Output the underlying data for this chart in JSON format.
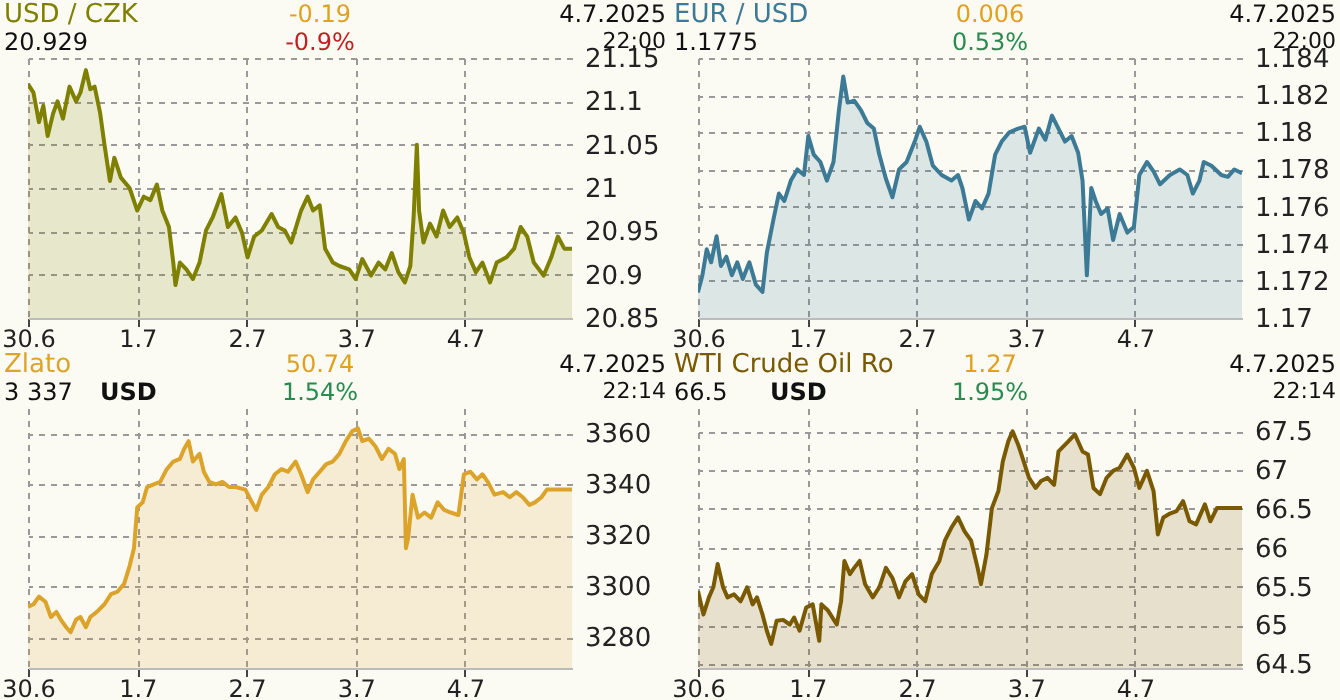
{
  "chart_data": [
    {
      "type": "area",
      "title": "USD / CZK",
      "annotations": [
        "20.929",
        "-0.19",
        "-0.9%",
        "4.7.2025",
        "22:00"
      ],
      "grid": true,
      "x": [
        "2025-06-30T00:00",
        "2025-06-30T01:12",
        "2025-06-30T02:24",
        "2025-06-30T03:22",
        "2025-06-30T04:19",
        "2025-06-30T05:31",
        "2025-06-30T06:29",
        "2025-06-30T07:41",
        "2025-06-30T09:07",
        "2025-06-30T10:34",
        "2025-06-30T11:31",
        "2025-06-30T12:43",
        "2025-06-30T13:41",
        "2025-06-30T14:38",
        "2025-06-30T15:50",
        "2025-06-30T16:48",
        "2025-06-30T18:00",
        "2025-06-30T18:58",
        "2025-06-30T20:24",
        "2025-06-30T22:19",
        "2025-07-01T00:00",
        "2025-07-01T01:26",
        "2025-07-01T02:53",
        "2025-07-01T04:19",
        "2025-07-01T05:31",
        "2025-07-01T06:58",
        "2025-07-01T07:55",
        "2025-07-01T08:24",
        "2025-07-01T09:22",
        "2025-07-01T10:48",
        "2025-07-01T12:14",
        "2025-07-01T13:41",
        "2025-07-01T15:07",
        "2025-07-01T16:34",
        "2025-07-01T18:29",
        "2025-07-01T19:55",
        "2025-07-01T21:36",
        "2025-07-01T23:02",
        "2025-07-02T00:14",
        "2025-07-02T01:41",
        "2025-07-02T03:22",
        "2025-07-02T05:31",
        "2025-07-02T06:58",
        "2025-07-02T08:24",
        "2025-07-02T09:50",
        "2025-07-02T12:00",
        "2025-07-02T13:26",
        "2025-07-02T14:38",
        "2025-07-02T16:05",
        "2025-07-02T17:17",
        "2025-07-02T18:58",
        "2025-07-02T20:24",
        "2025-07-02T22:34",
        "2025-07-03T00:00",
        "2025-07-03T01:26",
        "2025-07-03T03:22",
        "2025-07-03T05:02",
        "2025-07-03T06:29",
        "2025-07-03T07:55",
        "2025-07-03T09:22",
        "2025-07-03T10:48",
        "2025-07-03T12:00",
        "2025-07-03T12:43",
        "2025-07-03T13:26",
        "2025-07-03T13:55",
        "2025-07-03T14:53",
        "2025-07-03T16:19",
        "2025-07-03T17:46",
        "2025-07-03T19:12",
        "2025-07-03T20:38",
        "2025-07-03T22:19",
        "2025-07-03T23:46",
        "2025-07-04T00:58",
        "2025-07-04T02:24",
        "2025-07-04T03:50",
        "2025-07-04T05:31",
        "2025-07-04T06:58",
        "2025-07-04T09:07",
        "2025-07-04T10:48",
        "2025-07-04T12:14",
        "2025-07-04T13:41",
        "2025-07-04T15:07",
        "2025-07-04T17:17",
        "2025-07-04T18:58",
        "2025-07-04T20:24",
        "2025-07-04T21:50",
        "2025-07-04T23:31"
      ],
      "series": [
        {
          "color": "#808000",
          "values": [
            21.12,
            21.11,
            21.076,
            21.095,
            21.06,
            21.086,
            21.1,
            21.08,
            21.117,
            21.1,
            21.11,
            21.136,
            21.114,
            21.117,
            21.087,
            21.05,
            21.008,
            21.035,
            21.012,
            21.0,
            20.974,
            20.99,
            20.986,
            21.004,
            20.974,
            20.955,
            20.914,
            20.888,
            20.914,
            20.906,
            20.895,
            20.914,
            20.951,
            20.966,
            20.993,
            20.955,
            20.966,
            20.948,
            20.92,
            20.944,
            20.951,
            20.97,
            20.955,
            20.951,
            20.937,
            20.974,
            20.99,
            20.974,
            20.98,
            20.93,
            20.914,
            20.91,
            20.906,
            20.895,
            20.918,
            20.899,
            20.914,
            20.906,
            20.925,
            20.903,
            20.891,
            20.91,
            20.966,
            21.05,
            20.974,
            20.937,
            20.959,
            20.944,
            20.974,
            20.955,
            20.966,
            20.948,
            20.92,
            20.903,
            20.914,
            20.891,
            20.914,
            20.92,
            20.93,
            20.955,
            20.944,
            20.914,
            20.899,
            20.92,
            20.944,
            20.93,
            20.93
          ]
        }
      ],
      "xlim": [
        "2025-06-30T00:00",
        "2025-07-04T23:31"
      ],
      "xticks": [
        {
          "value": "2025-06-30",
          "label": "30.6"
        },
        {
          "value": "2025-07-01",
          "label": "1.7"
        },
        {
          "value": "2025-07-02",
          "label": "2.7"
        },
        {
          "value": "2025-07-03",
          "label": "3.7"
        },
        {
          "value": "2025-07-04",
          "label": "4.7"
        }
      ],
      "ylim": [
        20.85,
        21.15
      ],
      "yticks": [
        20.85,
        20.9,
        20.95,
        21,
        21.05,
        21.1,
        21.15
      ]
    },
    {
      "type": "area",
      "title": "EUR / USD",
      "annotations": [
        "1.1775",
        "0.006",
        "0.53%",
        "4.7.2025",
        "22:00"
      ],
      "grid": true,
      "x": [
        "2025-06-30T00:00",
        "2025-06-30T00:58",
        "2025-06-30T01:55",
        "2025-06-30T02:53",
        "2025-06-30T04:05",
        "2025-06-30T05:02",
        "2025-06-30T06:14",
        "2025-06-30T07:26",
        "2025-06-30T08:38",
        "2025-06-30T09:50",
        "2025-06-30T11:17",
        "2025-06-30T12:43",
        "2025-06-30T14:10",
        "2025-06-30T15:07",
        "2025-06-30T16:34",
        "2025-06-30T17:46",
        "2025-06-30T18:58",
        "2025-06-30T20:24",
        "2025-06-30T21:50",
        "2025-06-30T23:17",
        "2025-07-01T00:14",
        "2025-07-01T01:26",
        "2025-07-01T02:53",
        "2025-07-01T04:19",
        "2025-07-01T05:46",
        "2025-07-01T06:58",
        "2025-07-01T07:55",
        "2025-07-01T08:53",
        "2025-07-01T10:19",
        "2025-07-01T11:46",
        "2025-07-01T13:12",
        "2025-07-01T14:38",
        "2025-07-01T15:50",
        "2025-07-01T17:17",
        "2025-07-01T18:43",
        "2025-07-01T20:10",
        "2025-07-01T21:50",
        "2025-07-01T23:46",
        "2025-07-02T00:43",
        "2025-07-02T02:10",
        "2025-07-02T03:36",
        "2025-07-02T05:31",
        "2025-07-02T07:41",
        "2025-07-02T09:07",
        "2025-07-02T10:05",
        "2025-07-02T11:31",
        "2025-07-02T12:58",
        "2025-07-02T14:24",
        "2025-07-02T15:50",
        "2025-07-02T17:17",
        "2025-07-02T18:43",
        "2025-07-02T20:24",
        "2025-07-02T22:19",
        "2025-07-02T23:46",
        "2025-07-03T00:58",
        "2025-07-03T02:53",
        "2025-07-03T04:19",
        "2025-07-03T05:46",
        "2025-07-03T07:12",
        "2025-07-03T08:38",
        "2025-07-03T10:05",
        "2025-07-03T11:31",
        "2025-07-03T12:29",
        "2025-07-03T13:26",
        "2025-07-03T14:24",
        "2025-07-03T15:22",
        "2025-07-03T16:34",
        "2025-07-03T18:00",
        "2025-07-03T19:12",
        "2025-07-03T20:38",
        "2025-07-03T22:19",
        "2025-07-03T23:46",
        "2025-07-04T00:58",
        "2025-07-04T02:38",
        "2025-07-04T04:05",
        "2025-07-04T05:31",
        "2025-07-04T07:41",
        "2025-07-04T09:50",
        "2025-07-04T11:31",
        "2025-07-04T12:43",
        "2025-07-04T14:10",
        "2025-07-04T15:07",
        "2025-07-04T16:48",
        "2025-07-04T18:58",
        "2025-07-04T20:24",
        "2025-07-04T21:50",
        "2025-07-04T23:31"
      ],
      "series": [
        {
          "color": "#3d7a96",
          "values": [
            1.1714,
            1.1723,
            1.1737,
            1.173,
            1.1744,
            1.1728,
            1.1733,
            1.1723,
            1.173,
            1.1721,
            1.173,
            1.1718,
            1.1714,
            1.1735,
            1.1753,
            1.1767,
            1.1763,
            1.1774,
            1.178,
            1.1777,
            1.1798,
            1.1788,
            1.1784,
            1.1774,
            1.1784,
            1.1812,
            1.183,
            1.1816,
            1.1817,
            1.1812,
            1.1805,
            1.1802,
            1.1788,
            1.1775,
            1.1765,
            1.178,
            1.1784,
            1.1796,
            1.1803,
            1.1795,
            1.1782,
            1.1777,
            1.1774,
            1.1777,
            1.177,
            1.1753,
            1.1763,
            1.1759,
            1.1767,
            1.1788,
            1.1795,
            1.18,
            1.1802,
            1.1803,
            1.1789,
            1.1802,
            1.1796,
            1.1809,
            1.1802,
            1.1795,
            1.1798,
            1.1789,
            1.1774,
            1.1723,
            1.177,
            1.1763,
            1.1756,
            1.1759,
            1.1742,
            1.1756,
            1.1746,
            1.1749,
            1.1777,
            1.1784,
            1.1779,
            1.1772,
            1.1777,
            1.178,
            1.1777,
            1.1767,
            1.1774,
            1.1784,
            1.1782,
            1.1777,
            1.1776,
            1.178,
            1.1778
          ]
        }
      ],
      "xlim": [
        "2025-06-30T00:00",
        "2025-07-04T23:31"
      ],
      "xticks": [
        {
          "value": "2025-06-30",
          "label": "30.6"
        },
        {
          "value": "2025-07-01",
          "label": "1.7"
        },
        {
          "value": "2025-07-02",
          "label": "2.7"
        },
        {
          "value": "2025-07-03",
          "label": "3.7"
        },
        {
          "value": "2025-07-04",
          "label": "4.7"
        }
      ],
      "ylim": [
        1.17,
        1.184
      ],
      "yticks": [
        1.17,
        1.172,
        1.174,
        1.176,
        1.178,
        1.18,
        1.182,
        1.184
      ]
    },
    {
      "type": "area",
      "title": "Zlato",
      "annotations": [
        "3 337",
        "USD",
        "50.74",
        "1.54%",
        "4.7.2025",
        "22:14"
      ],
      "grid": true,
      "x": [
        "2025-06-30T00:00",
        "2025-06-30T01:12",
        "2025-06-30T02:24",
        "2025-06-30T03:50",
        "2025-06-30T05:02",
        "2025-06-30T06:14",
        "2025-06-30T07:12",
        "2025-06-30T08:24",
        "2025-06-30T09:22",
        "2025-06-30T10:34",
        "2025-06-30T11:31",
        "2025-06-30T12:43",
        "2025-06-30T13:41",
        "2025-06-30T15:07",
        "2025-06-30T16:48",
        "2025-06-30T18:14",
        "2025-06-30T19:41",
        "2025-06-30T21:07",
        "2025-06-30T22:19",
        "2025-06-30T23:17",
        "2025-07-01T00:00",
        "2025-07-01T01:12",
        "2025-07-01T02:10",
        "2025-07-01T03:36",
        "2025-07-01T05:02",
        "2025-07-01T06:29",
        "2025-07-01T07:55",
        "2025-07-01T09:22",
        "2025-07-01T10:19",
        "2025-07-01T11:17",
        "2025-07-01T12:14",
        "2025-07-01T13:41",
        "2025-07-01T14:38",
        "2025-07-01T15:50",
        "2025-07-01T17:17",
        "2025-07-01T18:43",
        "2025-07-01T20:10",
        "2025-07-01T21:36",
        "2025-07-01T23:46",
        "2025-07-02T01:12",
        "2025-07-02T02:10",
        "2025-07-02T03:22",
        "2025-07-02T04:48",
        "2025-07-02T06:14",
        "2025-07-02T07:41",
        "2025-07-02T09:07",
        "2025-07-02T10:48",
        "2025-07-02T12:00",
        "2025-07-02T13:26",
        "2025-07-02T14:38",
        "2025-07-02T16:05",
        "2025-07-02T17:31",
        "2025-07-02T18:58",
        "2025-07-02T20:24",
        "2025-07-02T21:50",
        "2025-07-02T23:17",
        "2025-07-03T00:29",
        "2025-07-03T01:26",
        "2025-07-03T02:53",
        "2025-07-03T04:19",
        "2025-07-03T05:46",
        "2025-07-03T07:12",
        "2025-07-03T08:38",
        "2025-07-03T09:36",
        "2025-07-03T10:34",
        "2025-07-03T11:02",
        "2025-07-03T11:31",
        "2025-07-03T12:29",
        "2025-07-03T13:41",
        "2025-07-03T15:07",
        "2025-07-03T16:34",
        "2025-07-03T18:00",
        "2025-07-03T19:26",
        "2025-07-03T20:53",
        "2025-07-03T22:34",
        "2025-07-03T23:46",
        "2025-07-04T01:12",
        "2025-07-04T02:38",
        "2025-07-04T03:50",
        "2025-07-04T05:02",
        "2025-07-04T06:29",
        "2025-07-04T08:24",
        "2025-07-04T09:50",
        "2025-07-04T11:17",
        "2025-07-04T12:43",
        "2025-07-04T14:10",
        "2025-07-04T15:22",
        "2025-07-04T16:48",
        "2025-07-04T18:00",
        "2025-07-04T23:31"
      ],
      "series": [
        {
          "color": "#dca42a",
          "values": [
            3292,
            3293,
            3296,
            3294,
            3288,
            3290,
            3287,
            3284,
            3282,
            3287,
            3288,
            3284,
            3288,
            3290,
            3293,
            3297,
            3298,
            3301,
            3308,
            3315,
            3331,
            3333,
            3339,
            3340,
            3341,
            3346,
            3349,
            3350,
            3354,
            3357,
            3349,
            3352,
            3345,
            3341,
            3340,
            3341,
            3339,
            3339,
            3338,
            3333,
            3330,
            3336,
            3339,
            3344,
            3346,
            3345,
            3349,
            3344,
            3337,
            3342,
            3345,
            3348,
            3349,
            3352,
            3357,
            3361,
            3362,
            3357,
            3358,
            3355,
            3350,
            3354,
            3352,
            3346,
            3350,
            3315,
            3319,
            3336,
            3327,
            3329,
            3327,
            3333,
            3330,
            3329,
            3328,
            3344,
            3345,
            3342,
            3344,
            3341,
            3336,
            3337,
            3335,
            3337,
            3335,
            3332,
            3333,
            3335,
            3338,
            3338
          ]
        }
      ],
      "xlim": [
        "2025-06-30T00:00",
        "2025-07-04T23:31"
      ],
      "xticks": [
        {
          "value": "2025-06-30",
          "label": "30.6"
        },
        {
          "value": "2025-07-01",
          "label": "1.7"
        },
        {
          "value": "2025-07-02",
          "label": "2.7"
        },
        {
          "value": "2025-07-03",
          "label": "3.7"
        },
        {
          "value": "2025-07-04",
          "label": "4.7"
        }
      ],
      "ylim": [
        3268,
        3370
      ],
      "yticks": [
        3280,
        3300,
        3320,
        3340,
        3360
      ]
    },
    {
      "type": "area",
      "title": "WTI Crude Oil Ro",
      "annotations": [
        "66.5",
        "USD",
        "1.27",
        "1.95%",
        "4.7.2025",
        "22:14"
      ],
      "grid": true,
      "x": [
        "2025-06-30T00:00",
        "2025-06-30T01:12",
        "2025-06-30T02:24",
        "2025-06-30T03:22",
        "2025-06-30T04:19",
        "2025-06-30T05:31",
        "2025-06-30T06:29",
        "2025-06-30T07:55",
        "2025-06-30T09:22",
        "2025-06-30T10:48",
        "2025-06-30T12:00",
        "2025-06-30T12:58",
        "2025-06-30T14:10",
        "2025-06-30T15:07",
        "2025-06-30T16:05",
        "2025-06-30T17:17",
        "2025-06-30T18:43",
        "2025-06-30T20:10",
        "2025-06-30T21:07",
        "2025-06-30T22:19",
        "2025-06-30T23:46",
        "2025-07-01T01:12",
        "2025-07-01T02:38",
        "2025-07-01T03:07",
        "2025-07-01T04:34",
        "2025-07-01T06:29",
        "2025-07-01T07:26",
        "2025-07-01T08:10",
        "2025-07-01T09:22",
        "2025-07-01T10:19",
        "2025-07-01T11:31",
        "2025-07-01T12:43",
        "2025-07-01T14:24",
        "2025-07-01T15:50",
        "2025-07-01T17:17",
        "2025-07-01T18:43",
        "2025-07-01T20:10",
        "2025-07-01T21:36",
        "2025-07-01T23:02",
        "2025-07-02T00:29",
        "2025-07-02T01:55",
        "2025-07-02T03:22",
        "2025-07-02T05:02",
        "2025-07-02T06:14",
        "2025-07-02T07:41",
        "2025-07-02T09:07",
        "2025-07-02T10:34",
        "2025-07-02T12:00",
        "2025-07-02T13:26",
        "2025-07-02T14:10",
        "2025-07-02T15:22",
        "2025-07-02T16:34",
        "2025-07-02T18:00",
        "2025-07-02T18:58",
        "2025-07-02T20:10",
        "2025-07-02T21:07",
        "2025-07-02T22:19",
        "2025-07-02T23:17",
        "2025-07-03T00:43",
        "2025-07-03T02:10",
        "2025-07-03T03:22",
        "2025-07-03T04:48",
        "2025-07-03T06:14",
        "2025-07-03T07:12",
        "2025-07-03T09:22",
        "2025-07-03T10:48",
        "2025-07-03T12:29",
        "2025-07-03T13:41",
        "2025-07-03T14:53",
        "2025-07-03T16:19",
        "2025-07-03T17:46",
        "2025-07-03T19:12",
        "2025-07-03T20:38",
        "2025-07-03T22:19",
        "2025-07-03T23:46",
        "2025-07-04T00:58",
        "2025-07-04T02:38",
        "2025-07-04T04:05",
        "2025-07-04T05:02",
        "2025-07-04T06:14",
        "2025-07-04T07:41",
        "2025-07-04T09:07",
        "2025-07-04T10:34",
        "2025-07-04T12:00",
        "2025-07-04T13:26",
        "2025-07-04T15:22",
        "2025-07-04T16:34",
        "2025-07-04T18:00",
        "2025-07-04T23:31"
      ],
      "series": [
        {
          "color": "#7a5a00",
          "values": [
            65.44,
            65.14,
            65.36,
            65.49,
            65.79,
            65.49,
            65.36,
            65.4,
            65.31,
            65.49,
            65.27,
            65.36,
            65.14,
            64.93,
            64.76,
            65.06,
            65.07,
            65.01,
            65.1,
            64.93,
            65.23,
            65.27,
            64.8,
            65.27,
            65.19,
            65.01,
            65.31,
            65.83,
            65.66,
            65.74,
            65.83,
            65.53,
            65.36,
            65.49,
            65.74,
            65.61,
            65.36,
            65.57,
            65.66,
            65.4,
            65.31,
            65.66,
            65.83,
            66.09,
            66.26,
            66.39,
            66.21,
            66.09,
            65.74,
            65.53,
            65.91,
            66.51,
            66.73,
            67.11,
            67.37,
            67.5,
            67.33,
            67.16,
            66.9,
            66.77,
            66.86,
            66.9,
            66.81,
            67.24,
            67.37,
            67.46,
            67.24,
            67.2,
            66.77,
            66.69,
            66.9,
            66.99,
            67.03,
            67.2,
            67.03,
            66.77,
            66.99,
            66.73,
            66.17,
            66.39,
            66.44,
            66.47,
            66.6,
            66.34,
            66.3,
            66.56,
            66.34,
            66.51,
            66.51
          ]
        }
      ],
      "xlim": [
        "2025-06-30T00:00",
        "2025-07-04T23:31"
      ],
      "xticks": [
        {
          "value": "2025-06-30",
          "label": "30.6"
        },
        {
          "value": "2025-07-01",
          "label": "1.7"
        },
        {
          "value": "2025-07-02",
          "label": "2.7"
        },
        {
          "value": "2025-07-03",
          "label": "3.7"
        },
        {
          "value": "2025-07-04",
          "label": "4.7"
        }
      ],
      "ylim": [
        64.45,
        67.8
      ],
      "yticks": [
        64.5,
        65,
        65.5,
        66,
        66.5,
        67,
        67.5
      ]
    }
  ]
}
